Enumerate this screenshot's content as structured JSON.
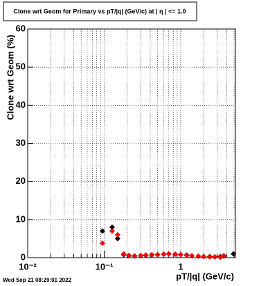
{
  "chart_data": {
    "type": "scatter",
    "title": "Clone wrt Geom for Primary vs pT/|q| (GeV/c) at | η | <= 1.0",
    "x_label": "pT/|q| (GeV/c)",
    "y_label": "Clone wrt Geom (%)",
    "footer": "Wed Sep 21 08:29:01 2022",
    "x": [
      0.095,
      0.127,
      0.15,
      0.18,
      0.21,
      0.25,
      0.3,
      0.35,
      0.42,
      0.5,
      0.6,
      0.7,
      0.85,
      1.0,
      1.2,
      1.4,
      1.7,
      2.0,
      2.4,
      2.8,
      3.3,
      3.65,
      4.9
    ],
    "series": [
      {
        "name": "black",
        "color": "#000000",
        "values": [
          7,
          8,
          5,
          0.8,
          0.5,
          0.4,
          0.5,
          0.6,
          0.7,
          0.8,
          0.9,
          1.0,
          0.9,
          0.8,
          0.7,
          0.5,
          0.4,
          0.3,
          0.3,
          0.2,
          0.3,
          0.4,
          1.0
        ]
      },
      {
        "name": "red",
        "color": "#ff0000",
        "values": [
          3.8,
          7,
          6,
          1.0,
          0.6,
          0.5,
          0.6,
          0.7,
          0.8,
          0.8,
          0.9,
          1.0,
          0.9,
          0.8,
          0.6,
          0.5,
          0.4,
          0.3,
          0.2,
          0.2,
          0.1,
          0.5,
          null
        ]
      }
    ],
    "xlim": [
      0.01,
      5.2
    ],
    "log_x": true,
    "xticks": [
      {
        "value": 0.01,
        "label": "10⁻²"
      },
      {
        "value": 0.1,
        "label": "10⁻¹"
      },
      1
    ],
    "ylim": [
      0,
      60
    ],
    "yticks": [
      0,
      10,
      20,
      30,
      40,
      50,
      60
    ],
    "grid": true
  }
}
